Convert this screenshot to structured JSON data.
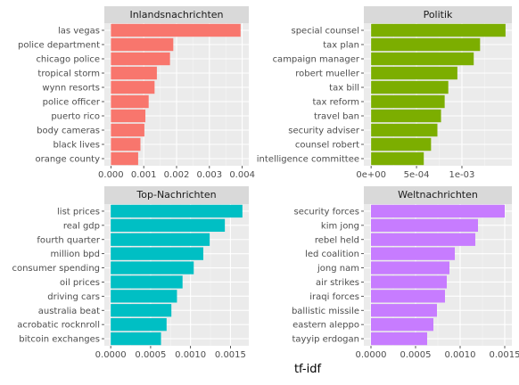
{
  "chart_data": {
    "type": "bar",
    "orientation": "horizontal",
    "xlabel": "tf-idf",
    "facets": [
      {
        "title": "Inlandsnachrichten",
        "color": "#F8766D",
        "categories": [
          "las vegas",
          "police department",
          "chicago police",
          "tropical storm",
          "wynn resorts",
          "police officer",
          "puerto rico",
          "body cameras",
          "black lives",
          "orange county"
        ],
        "values": [
          0.00395,
          0.0019,
          0.0018,
          0.0014,
          0.00133,
          0.00115,
          0.00105,
          0.00102,
          0.0009,
          0.00083
        ],
        "xlim": [
          -0.0002,
          0.0042
        ],
        "ticks": [
          0.0,
          0.001,
          0.002,
          0.003,
          0.004
        ],
        "tick_labels": [
          "0.000",
          "0.001",
          "0.002",
          "0.003",
          "0.004"
        ]
      },
      {
        "title": "Politik",
        "color": "#7CAE00",
        "categories": [
          "special counsel",
          "tax plan",
          "campaign manager",
          "robert mueller",
          "tax bill",
          "tax reform",
          "travel ban",
          "security adviser",
          "counsel robert",
          "intelligence committee"
        ],
        "values": [
          0.00148,
          0.0012,
          0.00113,
          0.00095,
          0.00085,
          0.00081,
          0.00077,
          0.00073,
          0.00066,
          0.00058
        ],
        "xlim": [
          -8e-05,
          0.00155
        ],
        "ticks": [
          0,
          0.0005,
          0.001
        ],
        "tick_labels": [
          "0e+00",
          "5e-04",
          "1e-03"
        ]
      },
      {
        "title": "Top-Nachrichten",
        "color": "#00BFC4",
        "categories": [
          "list prices",
          "real gdp",
          "fourth quarter",
          "million bpd",
          "consumer spending",
          "oil prices",
          "driving cars",
          "australia beat",
          "acrobatic rocknroll",
          "bitcoin exchanges"
        ],
        "values": [
          0.00165,
          0.00143,
          0.00124,
          0.00116,
          0.00104,
          0.0009,
          0.00083,
          0.00076,
          0.0007,
          0.00063
        ],
        "xlim": [
          -8e-05,
          0.00173
        ],
        "ticks": [
          0.0,
          0.0005,
          0.001,
          0.0015
        ],
        "tick_labels": [
          "0.0000",
          "0.0005",
          "0.0010",
          "0.0015"
        ]
      },
      {
        "title": "Weltnachrichten",
        "color": "#C77CFF",
        "categories": [
          "security forces",
          "kim jong",
          "rebel held",
          "led coalition",
          "jong nam",
          "air strikes",
          "iraqi forces",
          "ballistic missile",
          "eastern aleppo",
          "tayyip erdogan"
        ],
        "values": [
          0.0015,
          0.0012,
          0.00117,
          0.00094,
          0.00088,
          0.00085,
          0.00083,
          0.00074,
          0.0007,
          0.00063
        ],
        "xlim": [
          -8e-05,
          0.00158
        ],
        "ticks": [
          0.0,
          0.0005,
          0.001,
          0.0015
        ],
        "tick_labels": [
          "0.0000",
          "0.0005",
          "0.0010",
          "0.0015"
        ]
      }
    ]
  }
}
